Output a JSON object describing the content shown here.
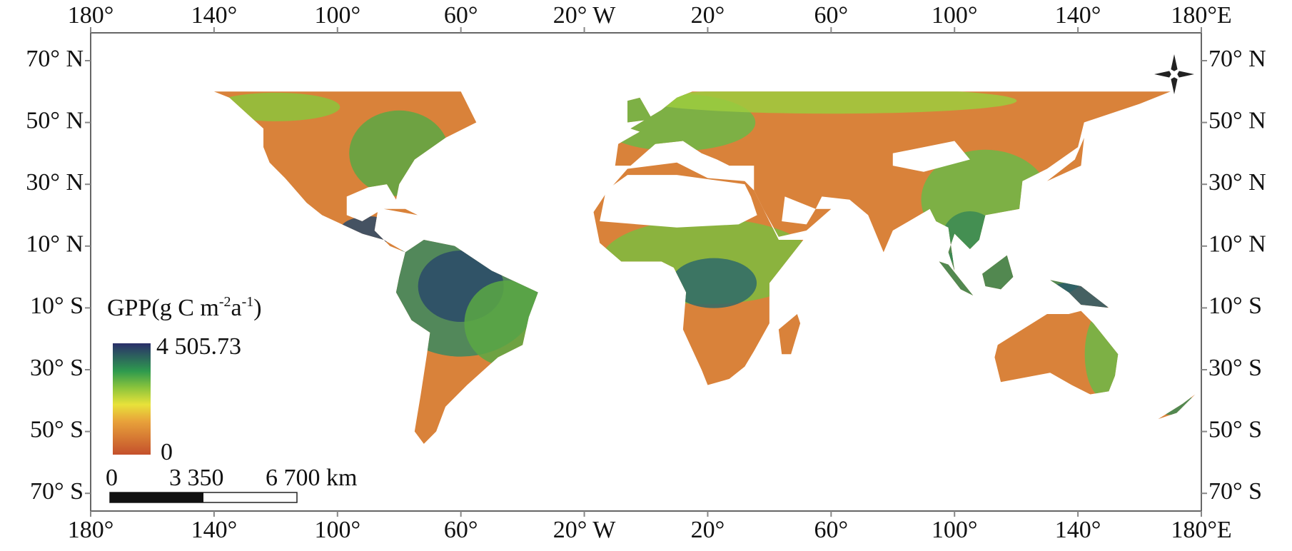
{
  "map": {
    "x_ticks": [
      "180°",
      "140°",
      "100°",
      "60°",
      "20° W",
      "20°",
      "60°",
      "100°",
      "140°",
      "180°E"
    ],
    "y_ticks": [
      "70° N",
      "50° N",
      "30° N",
      "10° N",
      "10° S",
      "30° S",
      "50° S",
      "70° S"
    ],
    "legend": {
      "title": [
        "GPP(g C m",
        "-2",
        "a",
        "-1",
        ")"
      ],
      "max": "4 505.73",
      "min": "0"
    },
    "scale_bar": {
      "labels": [
        "0",
        "3 350",
        "6 700 km"
      ]
    }
  }
}
